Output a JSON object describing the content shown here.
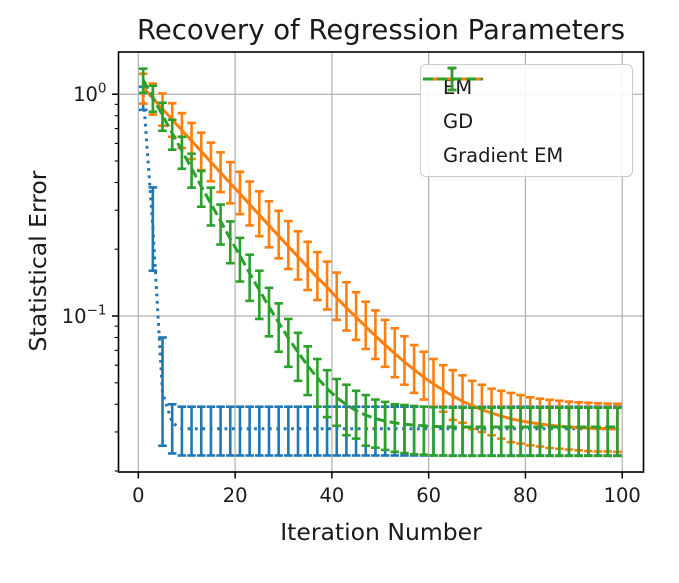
{
  "figure": {
    "title": "Recovery of Regression Parameters",
    "x_label": "Iteration Number",
    "y_label": "Statistical Error"
  },
  "chart_data": {
    "type": "line",
    "title": "Recovery of Regression Parameters",
    "xlabel": "Iteration Number",
    "ylabel": "Statistical Error",
    "y_scale": "log",
    "grid": true,
    "legend_position": "upper right",
    "xlim": [
      -4.1,
      104.4
    ],
    "ylim": [
      0.0198,
      1.55
    ],
    "x_ticks": [
      0,
      20,
      40,
      60,
      80,
      100
    ],
    "y_ticks": [
      {
        "value": 1,
        "base": "10",
        "exp": "0"
      },
      {
        "value": 0.1,
        "base": "10",
        "exp": "−1"
      }
    ],
    "colors": {
      "grid": "#b0b0b0",
      "spine": "#000000",
      "text": "#1a1a1a",
      "background": "#ffffff"
    },
    "error_every_iterations": 2,
    "x": [
      1,
      3,
      5,
      7,
      9,
      11,
      13,
      15,
      17,
      19,
      21,
      23,
      25,
      27,
      29,
      31,
      33,
      35,
      37,
      39,
      41,
      43,
      45,
      47,
      49,
      51,
      53,
      55,
      57,
      59,
      61,
      63,
      65,
      67,
      69,
      71,
      73,
      75,
      77,
      79,
      81,
      83,
      85,
      87,
      89,
      91,
      93,
      95,
      97,
      99
    ],
    "series": [
      {
        "name": "EM",
        "color": "#1f77b4",
        "linestyle": "dotted",
        "y": [
          1.0,
          0.25,
          0.045,
          0.033,
          0.031,
          0.031,
          0.031,
          0.031,
          0.031,
          0.031,
          0.031,
          0.031,
          0.031,
          0.031,
          0.031,
          0.031,
          0.031,
          0.031,
          0.031,
          0.031,
          0.031,
          0.031,
          0.031,
          0.031,
          0.031,
          0.031,
          0.031,
          0.031,
          0.031,
          0.031,
          0.031,
          0.031,
          0.031,
          0.031,
          0.031,
          0.031,
          0.031,
          0.031,
          0.031,
          0.031,
          0.031,
          0.031,
          0.031,
          0.031,
          0.031,
          0.031,
          0.031,
          0.031,
          0.031,
          0.031
        ],
        "y_hi": [
          1.08,
          0.38,
          0.08,
          0.04,
          0.039,
          0.039,
          0.039,
          0.039,
          0.039,
          0.039,
          0.039,
          0.039,
          0.039,
          0.039,
          0.039,
          0.039,
          0.039,
          0.039,
          0.039,
          0.039,
          0.039,
          0.039,
          0.039,
          0.039,
          0.039,
          0.039,
          0.039,
          0.039,
          0.039,
          0.039,
          0.039,
          0.039,
          0.039,
          0.039,
          0.039,
          0.039,
          0.039,
          0.039,
          0.039,
          0.039,
          0.039,
          0.039,
          0.039,
          0.039,
          0.039,
          0.039,
          0.039,
          0.039,
          0.039,
          0.039
        ],
        "y_lo": [
          0.85,
          0.16,
          0.026,
          0.024,
          0.0235,
          0.0235,
          0.0235,
          0.0235,
          0.0235,
          0.0235,
          0.0235,
          0.0235,
          0.0235,
          0.0235,
          0.0235,
          0.0235,
          0.0235,
          0.0235,
          0.0235,
          0.0235,
          0.0235,
          0.0235,
          0.0235,
          0.0235,
          0.0235,
          0.0235,
          0.0235,
          0.0235,
          0.0235,
          0.0235,
          0.0235,
          0.0235,
          0.0235,
          0.0235,
          0.0235,
          0.0235,
          0.0235,
          0.0235,
          0.0235,
          0.0235,
          0.0235,
          0.0235,
          0.0235,
          0.0235,
          0.0235,
          0.0235,
          0.0235,
          0.0235,
          0.0235,
          0.0235
        ]
      },
      {
        "name": "GD",
        "color": "#ff7f0e",
        "linestyle": "solid",
        "y": [
          1.07,
          0.959,
          0.858,
          0.769,
          0.688,
          0.616,
          0.552,
          0.494,
          0.443,
          0.397,
          0.356,
          0.319,
          0.286,
          0.256,
          0.23,
          0.206,
          0.185,
          0.166,
          0.149,
          0.135,
          0.121,
          0.109,
          0.0988,
          0.0896,
          0.0813,
          0.0741,
          0.0677,
          0.0621,
          0.0573,
          0.053,
          0.0494,
          0.0463,
          0.0436,
          0.0413,
          0.0394,
          0.0378,
          0.0365,
          0.0354,
          0.0344,
          0.0337,
          0.0331,
          0.0326,
          0.0322,
          0.0319,
          0.0316,
          0.0314,
          0.0312,
          0.0311,
          0.031,
          0.0309
        ],
        "y_hi": [
          1.236,
          1.117,
          1.008,
          0.911,
          0.822,
          0.742,
          0.671,
          0.605,
          0.547,
          0.494,
          0.447,
          0.404,
          0.365,
          0.329,
          0.298,
          0.268,
          0.241,
          0.216,
          0.194,
          0.176,
          0.157,
          0.142,
          0.128,
          0.116,
          0.106,
          0.096,
          0.088,
          0.081,
          0.074,
          0.069,
          0.064,
          0.06,
          0.057,
          0.054,
          0.051,
          0.049,
          0.047,
          0.046,
          0.045,
          0.044,
          0.043,
          0.0424,
          0.0419,
          0.0415,
          0.0411,
          0.0408,
          0.0406,
          0.0404,
          0.0403,
          0.0402
        ],
        "y_lo": [
          0.907,
          0.809,
          0.721,
          0.643,
          0.572,
          0.51,
          0.455,
          0.405,
          0.362,
          0.322,
          0.288,
          0.256,
          0.229,
          0.204,
          0.182,
          0.163,
          0.146,
          0.131,
          0.118,
          0.107,
          0.096,
          0.086,
          0.078,
          0.071,
          0.064,
          0.059,
          0.053,
          0.049,
          0.045,
          0.042,
          0.039,
          0.037,
          0.034,
          0.033,
          0.031,
          0.03,
          0.029,
          0.028,
          0.027,
          0.0266,
          0.0261,
          0.0258,
          0.0254,
          0.0252,
          0.025,
          0.0248,
          0.0246,
          0.0245,
          0.0245,
          0.0244
        ]
      },
      {
        "name": "Gradient EM",
        "color": "#2ca02c",
        "linestyle": "dashed",
        "y": [
          1.16,
          0.965,
          0.803,
          0.668,
          0.556,
          0.463,
          0.385,
          0.321,
          0.268,
          0.223,
          0.187,
          0.156,
          0.131,
          0.11,
          0.0935,
          0.0797,
          0.0686,
          0.0597,
          0.0526,
          0.0471,
          0.0429,
          0.0398,
          0.0374,
          0.0357,
          0.0345,
          0.0336,
          0.033,
          0.0325,
          0.0322,
          0.032,
          0.0318,
          0.0317,
          0.0316,
          0.0316,
          0.0316,
          0.0316,
          0.0316,
          0.0316,
          0.0316,
          0.0316,
          0.0316,
          0.0316,
          0.0316,
          0.0316,
          0.0316,
          0.0316,
          0.0316,
          0.0316,
          0.0316,
          0.0316
        ],
        "y_hi": [
          1.304,
          1.092,
          0.915,
          0.767,
          0.643,
          0.539,
          0.451,
          0.379,
          0.318,
          0.267,
          0.225,
          0.189,
          0.16,
          0.134,
          0.114,
          0.097,
          0.084,
          0.073,
          0.064,
          0.057,
          0.052,
          0.049,
          0.046,
          0.044,
          0.042,
          0.041,
          0.04,
          0.0397,
          0.0393,
          0.039,
          0.0388,
          0.0387,
          0.0386,
          0.0386,
          0.0386,
          0.0386,
          0.0386,
          0.0386,
          0.0386,
          0.0386,
          0.0386,
          0.0386,
          0.0386,
          0.0386,
          0.0386,
          0.0386,
          0.0386,
          0.0386,
          0.0386,
          0.0386
        ],
        "y_lo": [
          1.014,
          0.833,
          0.684,
          0.562,
          0.461,
          0.379,
          0.311,
          0.256,
          0.21,
          0.173,
          0.143,
          0.117,
          0.097,
          0.081,
          0.069,
          0.059,
          0.051,
          0.044,
          0.039,
          0.035,
          0.032,
          0.029,
          0.028,
          0.026,
          0.0255,
          0.0249,
          0.0244,
          0.0241,
          0.0238,
          0.0237,
          0.0235,
          0.0235,
          0.0234,
          0.0234,
          0.0234,
          0.0234,
          0.0234,
          0.0234,
          0.0234,
          0.0234,
          0.0234,
          0.0234,
          0.0234,
          0.0234,
          0.0234,
          0.0234,
          0.0234,
          0.0234,
          0.0234,
          0.0234
        ]
      }
    ]
  }
}
